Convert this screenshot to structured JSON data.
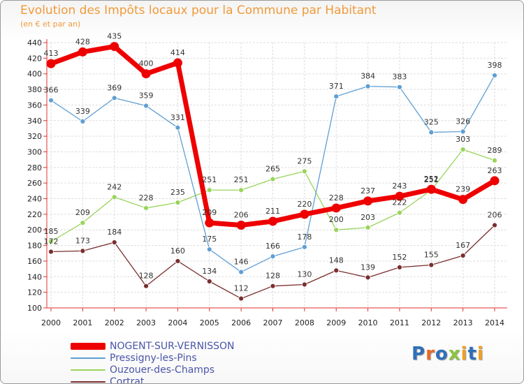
{
  "title": "Evolution des Impôts locaux pour la Commune par Habitant",
  "subtitle": "(en € et par an)",
  "logo": {
    "letters": [
      "P",
      "r",
      "o",
      "x",
      "i",
      "t",
      "i"
    ],
    "colors": [
      "#2f6fb8",
      "#e86a2b",
      "#2f6fb8",
      "#8bc53f",
      "#f0a020",
      "#2f6fb8",
      "#f0a020"
    ]
  },
  "chart_data": {
    "type": "line",
    "x": [
      "2000",
      "2001",
      "2002",
      "2003",
      "2004",
      "2005",
      "2006",
      "2007",
      "2008",
      "2009",
      "2010",
      "2011",
      "2012",
      "2013",
      "2014"
    ],
    "ylim": [
      100,
      440
    ],
    "yticks": [
      "100",
      "120",
      "140",
      "160",
      "180",
      "200",
      "220",
      "240",
      "260",
      "280",
      "300",
      "320",
      "340",
      "360",
      "380",
      "400",
      "420",
      "440"
    ],
    "grid": true,
    "legend_position": "bottom-left",
    "series": [
      {
        "name": "NOGENT-SUR-VERNISSON",
        "color": "#ee0000",
        "values": [
          413,
          428,
          435,
          400,
          414,
          209,
          206,
          211,
          220,
          228,
          237,
          243,
          252,
          239,
          263
        ],
        "labels": [
          "413",
          "428",
          "435",
          "400",
          "414",
          "209",
          "206",
          "211",
          "220",
          "228",
          "237",
          "243",
          "252",
          "239",
          "263"
        ]
      },
      {
        "name": "Pressigny-les-Pins",
        "color": "#5f9fd3",
        "values": [
          366,
          339,
          369,
          359,
          331,
          175,
          146,
          166,
          178,
          371,
          384,
          383,
          325,
          326,
          398
        ],
        "labels": [
          "366",
          "339",
          "369",
          "359",
          "331",
          "175",
          "146",
          "166",
          "178",
          "371",
          "384",
          "383",
          "325",
          "326",
          "398"
        ]
      },
      {
        "name": "Ouzouer-des-Champs",
        "color": "#99d45a",
        "values": [
          185,
          209,
          242,
          228,
          235,
          251,
          251,
          265,
          275,
          200,
          203,
          222,
          251,
          303,
          289
        ],
        "labels": [
          "185",
          "209",
          "242",
          "228",
          "235",
          "251",
          "251",
          "265",
          "275",
          "200",
          "203",
          "222",
          "251",
          "303",
          "289"
        ]
      },
      {
        "name": "Cortrat",
        "color": "#7a2e2e",
        "values": [
          172,
          173,
          184,
          128,
          160,
          134,
          112,
          128,
          130,
          148,
          139,
          152,
          155,
          167,
          206
        ],
        "labels": [
          "172",
          "173",
          "184",
          "128",
          "160",
          "134",
          "112",
          "128",
          "130",
          "148",
          "139",
          "152",
          "155",
          "167",
          "206"
        ]
      }
    ]
  }
}
